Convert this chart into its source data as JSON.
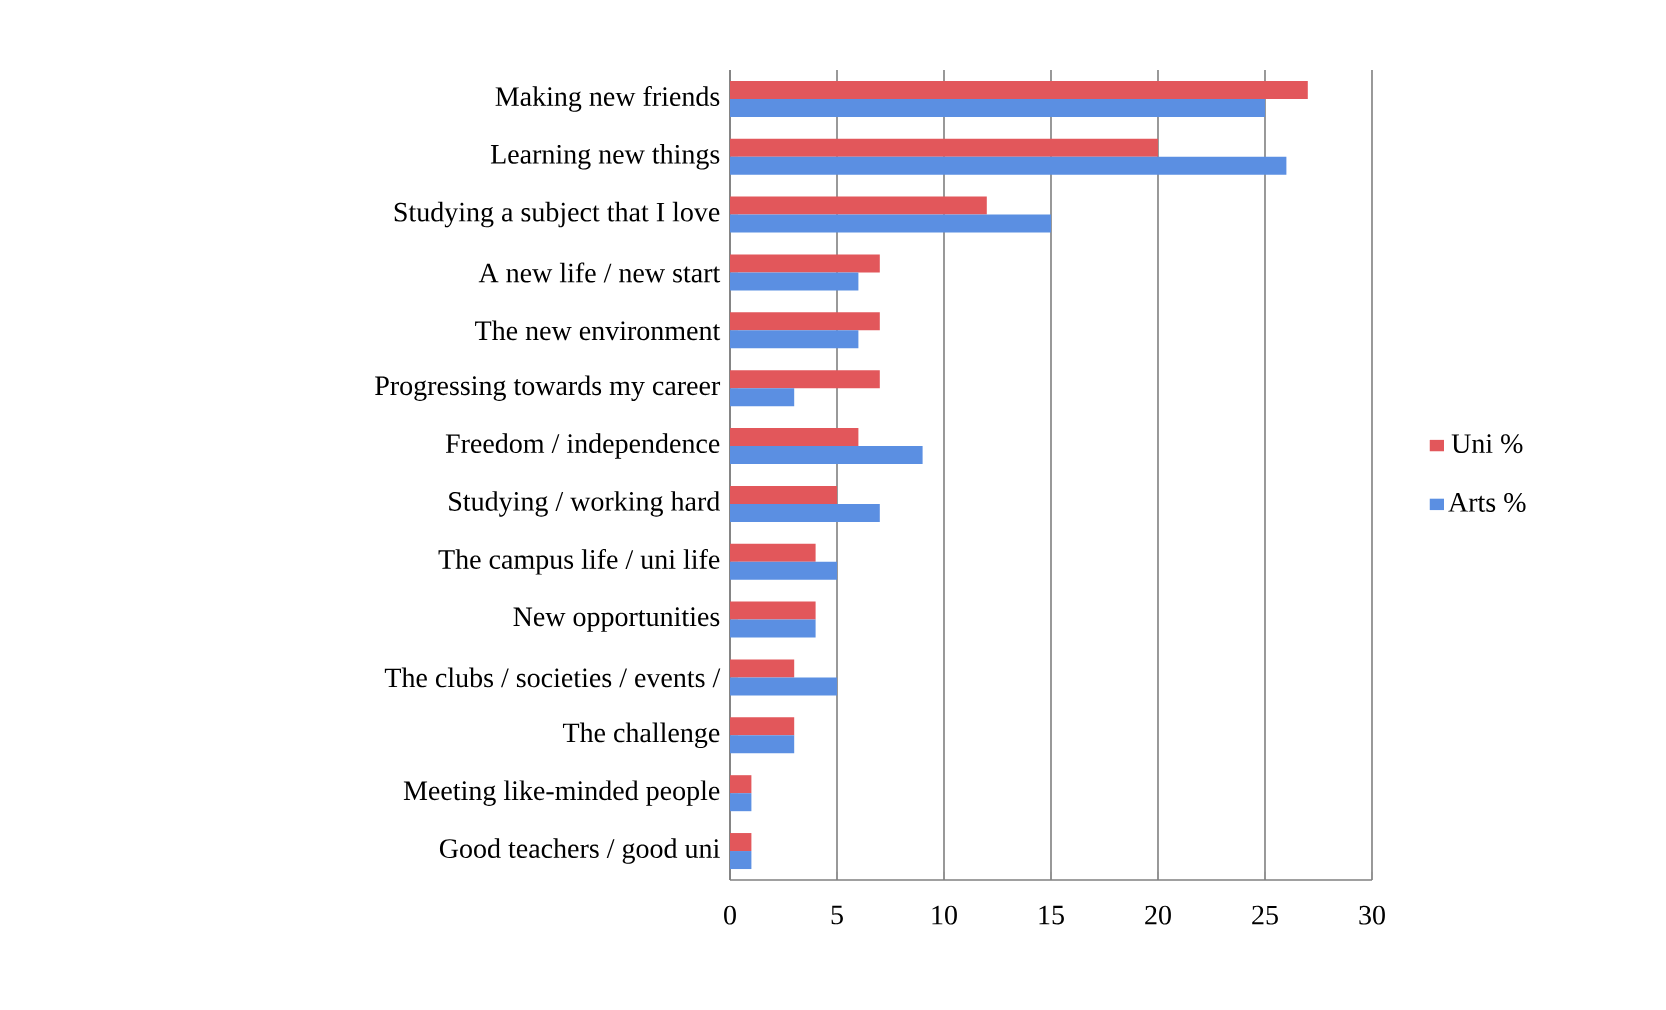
{
  "chart_data": {
    "type": "bar",
    "orientation": "horizontal",
    "categories": [
      "Making new friends",
      "Learning new things",
      "Studying a subject that I love",
      "A new life / new start",
      "The new environment",
      "Progressing towards my career",
      "Freedom / independence",
      "Studying / working hard",
      "The campus life / uni life",
      "New opportunities",
      "The clubs / societies / events /",
      "The challenge",
      "Meeting like-minded people",
      "Good teachers / good uni"
    ],
    "series": [
      {
        "name": "Uni %",
        "color": "#e2575b",
        "values": [
          27,
          20,
          12,
          7,
          7,
          7,
          6,
          5,
          4,
          4,
          3,
          3,
          1,
          1
        ]
      },
      {
        "name": "Arts %",
        "color": "#5b8fe2",
        "values": [
          25,
          26,
          15,
          6,
          6,
          3,
          9,
          7,
          5,
          4,
          5,
          3,
          1,
          1
        ]
      }
    ],
    "xlim": [
      0,
      30
    ],
    "xticks": [
      0,
      5,
      10,
      15,
      20,
      25,
      30
    ],
    "grid": "x",
    "legend": "right"
  }
}
